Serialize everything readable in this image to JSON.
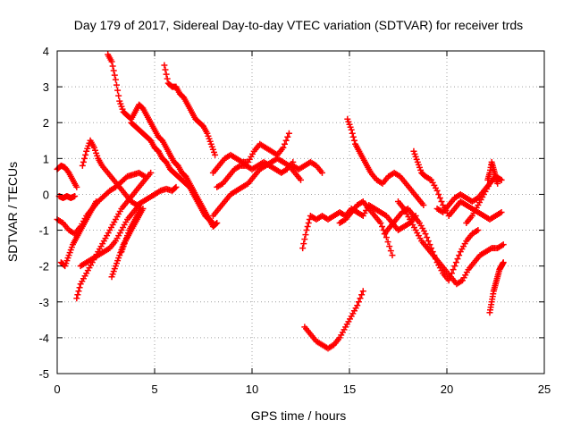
{
  "chart_data": {
    "type": "scatter",
    "title": "Day 179 of 2017, Sidereal Day-to-day VTEC variation (SDTVAR) for receiver trds",
    "xlabel": "GPS time / hours",
    "ylabel": "SDTVAR / TECUs",
    "xlim": [
      0,
      25
    ],
    "ylim": [
      -5,
      4
    ],
    "xticks": [
      "0",
      "5",
      "10",
      "15",
      "20",
      "25"
    ],
    "yticks": [
      "-5",
      "-4",
      "-3",
      "-2",
      "-1",
      "0",
      "1",
      "2",
      "3",
      "4"
    ],
    "grid": true,
    "marker": "+",
    "color": "#ff0000",
    "series": [
      {
        "x": [
          0.0,
          0.3,
          0.6,
          0.9,
          1.2,
          1.5,
          1.8,
          2.1,
          2.4,
          2.7,
          3.0,
          3.3,
          3.6,
          3.9,
          4.2,
          4.5
        ],
        "y": [
          -0.7,
          -0.8,
          -1.0,
          -1.1,
          -0.9,
          -0.6,
          -0.4,
          -0.2,
          -0.05,
          0.1,
          0.2,
          0.35,
          0.5,
          0.55,
          0.6,
          0.5
        ]
      },
      {
        "x": [
          0.1,
          0.3,
          0.5,
          0.7,
          0.9
        ],
        "y": [
          -0.05,
          -0.1,
          -0.05,
          -0.1,
          -0.05
        ]
      },
      {
        "x": [
          0.0,
          0.2,
          0.4,
          0.6,
          0.8,
          1.0
        ],
        "y": [
          0.7,
          0.8,
          0.75,
          0.6,
          0.4,
          0.2
        ]
      },
      {
        "x": [
          0.2,
          0.4,
          0.6,
          0.8,
          1.0,
          1.2,
          1.4,
          1.6,
          1.8,
          2.0
        ],
        "y": [
          -1.9,
          -2.0,
          -1.7,
          -1.4,
          -1.2,
          -1.0,
          -0.8,
          -0.6,
          -0.4,
          -0.2
        ]
      },
      {
        "x": [
          1.0,
          1.2,
          1.5,
          1.8,
          2.1,
          2.4,
          2.7,
          3.0,
          3.3,
          3.6,
          3.9,
          4.2,
          4.5,
          4.8
        ],
        "y": [
          -2.9,
          -2.5,
          -2.2,
          -1.9,
          -1.6,
          -1.3,
          -1.0,
          -0.7,
          -0.4,
          -0.2,
          0.0,
          0.2,
          0.4,
          0.6
        ]
      },
      {
        "x": [
          1.2,
          1.5,
          1.8,
          2.1,
          2.4,
          2.7,
          3.0,
          3.3,
          3.6,
          3.9,
          4.2
        ],
        "y": [
          -2.0,
          -1.9,
          -1.8,
          -1.7,
          -1.6,
          -1.5,
          -1.3,
          -1.0,
          -0.7,
          -0.5,
          -0.3
        ]
      },
      {
        "x": [
          2.8,
          3.0,
          3.2,
          3.4,
          3.6,
          3.8,
          4.0,
          4.2,
          4.4
        ],
        "y": [
          -2.3,
          -2.0,
          -1.7,
          -1.4,
          -1.2,
          -1.0,
          -0.8,
          -0.6,
          -0.4
        ]
      },
      {
        "x": [
          3.3,
          3.5,
          3.7,
          3.9,
          4.1,
          4.3
        ],
        "y": [
          -1.6,
          -1.3,
          -1.0,
          -0.8,
          -0.6,
          -0.4
        ]
      },
      {
        "x": [
          1.3,
          1.5,
          1.7,
          1.9,
          2.1,
          2.3,
          2.6,
          2.9,
          3.2,
          3.5,
          3.8,
          4.1,
          4.4,
          4.7,
          5.0,
          5.3,
          5.6,
          5.9,
          6.1
        ],
        "y": [
          0.8,
          1.2,
          1.5,
          1.3,
          1.0,
          0.8,
          0.6,
          0.4,
          0.2,
          0.0,
          -0.2,
          -0.3,
          -0.2,
          -0.1,
          0.0,
          0.1,
          0.15,
          0.1,
          0.2
        ]
      },
      {
        "x": [
          2.6,
          2.8,
          3.0,
          3.2,
          3.4,
          3.6,
          3.8,
          4.0,
          4.2,
          4.4,
          4.6,
          4.8,
          5.0,
          5.2,
          5.4,
          5.6,
          5.8,
          6.0,
          6.2,
          6.4,
          6.6,
          6.8,
          7.0,
          7.2,
          7.4,
          7.6,
          7.8,
          8.0,
          8.2
        ],
        "y": [
          3.9,
          3.7,
          3.2,
          2.6,
          2.3,
          2.2,
          2.1,
          2.3,
          2.5,
          2.4,
          2.2,
          2.0,
          1.8,
          1.6,
          1.5,
          1.3,
          1.1,
          0.9,
          0.8,
          0.6,
          0.5,
          0.3,
          0.1,
          -0.1,
          -0.3,
          -0.5,
          -0.7,
          -0.9,
          -0.8
        ]
      },
      {
        "x": [
          3.8,
          4.0,
          4.2,
          4.4,
          4.6,
          4.8,
          5.0,
          5.2,
          5.4,
          5.6,
          5.8,
          6.0,
          6.2,
          6.4,
          6.6,
          6.8,
          7.0,
          7.2,
          7.4,
          7.6,
          7.8,
          8.0
        ],
        "y": [
          2.0,
          1.9,
          1.8,
          1.7,
          1.6,
          1.5,
          1.3,
          1.2,
          1.0,
          0.9,
          0.7,
          0.6,
          0.5,
          0.4,
          0.3,
          0.2,
          0.0,
          -0.2,
          -0.4,
          -0.6,
          -0.7,
          -0.8
        ]
      },
      {
        "x": [
          5.5,
          5.7,
          5.9,
          6.1,
          6.3,
          6.5,
          6.7,
          6.9,
          7.1,
          7.3,
          7.5,
          7.7,
          7.9,
          8.1
        ],
        "y": [
          3.6,
          3.1,
          3.0,
          3.0,
          2.8,
          2.7,
          2.5,
          2.3,
          2.1,
          2.0,
          1.9,
          1.7,
          1.4,
          1.1
        ]
      },
      {
        "x": [
          8.0,
          8.3,
          8.6,
          8.9,
          9.2,
          9.5,
          9.8,
          10.1,
          10.4,
          10.7,
          11.0,
          11.3,
          11.6,
          11.9
        ],
        "y": [
          0.6,
          0.8,
          1.0,
          1.1,
          1.0,
          0.9,
          0.9,
          1.2,
          1.4,
          1.3,
          1.2,
          1.1,
          1.3,
          1.7
        ]
      },
      {
        "x": [
          8.0,
          8.3,
          8.6,
          8.9,
          9.2,
          9.5,
          9.8,
          10.1,
          10.4,
          10.7,
          11.0,
          11.3,
          11.6,
          11.9,
          12.2,
          12.5
        ],
        "y": [
          -0.6,
          -0.4,
          -0.2,
          0.0,
          0.1,
          0.2,
          0.3,
          0.5,
          0.7,
          0.8,
          0.9,
          1.0,
          0.9,
          0.8,
          0.6,
          0.4
        ]
      },
      {
        "x": [
          8.2,
          8.5,
          8.8,
          9.1,
          9.4,
          9.7,
          10.0,
          10.3,
          10.6,
          10.9,
          11.2,
          11.5,
          11.8,
          12.1
        ],
        "y": [
          0.2,
          0.3,
          0.5,
          0.7,
          0.8,
          0.8,
          0.7,
          0.8,
          0.9,
          0.8,
          0.7,
          0.6,
          0.7,
          0.9
        ]
      },
      {
        "x": [
          12.1,
          12.4,
          12.7,
          13.0,
          13.3,
          13.6
        ],
        "y": [
          0.8,
          0.7,
          0.8,
          0.9,
          0.8,
          0.6
        ]
      },
      {
        "x": [
          12.6,
          12.8,
          13.0,
          13.3,
          13.6,
          13.9,
          14.2,
          14.5,
          14.8,
          15.1,
          15.4,
          15.7,
          16.0,
          16.3,
          16.6,
          16.9,
          17.2,
          17.5,
          17.8,
          18.1,
          18.4
        ],
        "y": [
          -1.5,
          -1.0,
          -0.6,
          -0.7,
          -0.6,
          -0.7,
          -0.6,
          -0.5,
          -0.6,
          -0.4,
          -0.5,
          -0.6,
          -0.3,
          -0.4,
          -0.5,
          -0.6,
          -0.8,
          -1.0,
          -0.9,
          -0.8,
          -0.6
        ]
      },
      {
        "x": [
          12.7,
          13.0,
          13.3,
          13.6,
          13.9,
          14.2,
          14.5,
          14.8,
          15.1,
          15.4,
          15.7
        ],
        "y": [
          -3.7,
          -3.9,
          -4.1,
          -4.2,
          -4.3,
          -4.2,
          -4.0,
          -3.7,
          -3.4,
          -3.1,
          -2.7
        ]
      },
      {
        "x": [
          14.5,
          14.8,
          15.1,
          15.4,
          15.7,
          16.0,
          16.3,
          16.6,
          16.9,
          17.2
        ],
        "y": [
          -0.8,
          -0.7,
          -0.5,
          -0.3,
          -0.2,
          -0.4,
          -0.6,
          -0.8,
          -1.2,
          -1.7
        ]
      },
      {
        "x": [
          14.9,
          15.1,
          15.3,
          15.5,
          15.7,
          15.9,
          16.1,
          16.4,
          16.7,
          17.0,
          17.3,
          17.6,
          17.9,
          18.2,
          18.5,
          18.8
        ],
        "y": [
          2.1,
          1.8,
          1.4,
          1.2,
          1.0,
          0.8,
          0.6,
          0.4,
          0.3,
          0.5,
          0.6,
          0.5,
          0.3,
          0.1,
          -0.1,
          -0.3
        ]
      },
      {
        "x": [
          16.8,
          17.1,
          17.4,
          17.7,
          18.0,
          18.3,
          18.6,
          18.9,
          19.2,
          19.5,
          19.8,
          20.1,
          20.4,
          20.7,
          21.0,
          21.3,
          21.6
        ],
        "y": [
          -1.1,
          -0.9,
          -0.7,
          -0.5,
          -0.4,
          -0.6,
          -0.8,
          -1.1,
          -1.5,
          -1.9,
          -2.2,
          -2.4,
          -2.0,
          -1.6,
          -1.3,
          -1.1,
          -1.0
        ]
      },
      {
        "x": [
          17.5,
          17.8,
          18.1,
          18.4,
          18.7,
          19.0,
          19.3,
          19.6,
          19.9,
          20.2,
          20.5,
          20.8,
          21.1,
          21.4,
          21.7,
          22.0,
          22.3,
          22.6,
          22.9
        ],
        "y": [
          -0.2,
          -0.4,
          -0.7,
          -1.0,
          -1.3,
          -1.5,
          -1.7,
          -1.9,
          -2.1,
          -2.3,
          -2.5,
          -2.4,
          -2.1,
          -1.9,
          -1.7,
          -1.6,
          -1.5,
          -1.5,
          -1.4
        ]
      },
      {
        "x": [
          18.3,
          18.5,
          18.7,
          18.9,
          19.2,
          19.5,
          19.8,
          20.1,
          20.4,
          20.7,
          21.0,
          21.3,
          21.6,
          21.9,
          22.2,
          22.5,
          22.8
        ],
        "y": [
          1.2,
          0.9,
          0.6,
          0.5,
          0.4,
          0.1,
          -0.3,
          -0.6,
          -0.4,
          -0.2,
          -0.3,
          -0.4,
          -0.5,
          -0.6,
          -0.7,
          -0.6,
          -0.5
        ]
      },
      {
        "x": [
          19.5,
          19.8,
          20.1,
          20.4,
          20.7,
          21.0,
          21.3,
          21.6,
          21.9,
          22.2,
          22.5,
          22.8
        ],
        "y": [
          -0.4,
          -0.5,
          -0.3,
          -0.1,
          0.0,
          -0.1,
          -0.2,
          -0.1,
          0.1,
          0.3,
          0.5,
          0.4
        ]
      },
      {
        "x": [
          21.0,
          21.3,
          21.6,
          21.9,
          22.2,
          22.5,
          22.8
        ],
        "y": [
          -0.8,
          -0.6,
          -0.3,
          0.0,
          0.3,
          0.5,
          0.4
        ]
      },
      {
        "x": [
          22.2,
          22.3,
          22.4,
          22.5,
          22.6,
          22.7,
          22.8,
          22.9
        ],
        "y": [
          -3.3,
          -3.0,
          -2.7,
          -2.5,
          -2.3,
          -2.1,
          -2.0,
          -1.9
        ]
      },
      {
        "x": [
          22.1,
          22.2,
          22.3,
          22.4,
          22.5,
          22.6
        ],
        "y": [
          0.4,
          0.6,
          0.9,
          0.7,
          0.5,
          0.3
        ]
      }
    ]
  }
}
